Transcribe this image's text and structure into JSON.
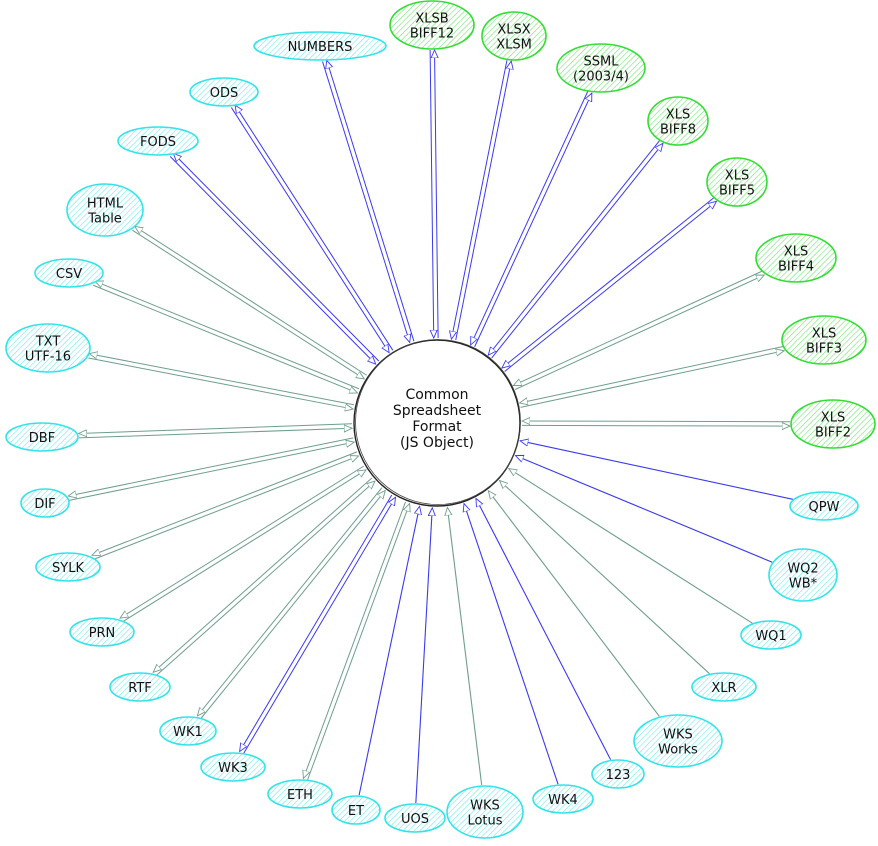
{
  "center": {
    "lines": [
      "Common",
      "Spreadsheet",
      "Format",
      "(JS Object)"
    ]
  },
  "colors": {
    "xls_family_stroke": "#33dd33",
    "xls_family_fill": "#b8f5b8",
    "other_stroke": "#33e3e8",
    "other_fill": "#b8f4f6",
    "edge_blue": "#3a3af0",
    "edge_green": "#6f9e8c"
  },
  "nodes": [
    {
      "id": "numbers",
      "lines": [
        "NUMBERS"
      ],
      "family": "other",
      "edge": "both",
      "edge_color": "blue"
    },
    {
      "id": "xlsb",
      "lines": [
        "XLSB",
        "BIFF12"
      ],
      "family": "xls",
      "edge": "both",
      "edge_color": "blue"
    },
    {
      "id": "xlsx",
      "lines": [
        "XLSX",
        "XLSM"
      ],
      "family": "xls",
      "edge": "both",
      "edge_color": "blue"
    },
    {
      "id": "ssml",
      "lines": [
        "SSML",
        "(2003/4)"
      ],
      "family": "xls",
      "edge": "both",
      "edge_color": "blue"
    },
    {
      "id": "biff8",
      "lines": [
        "XLS",
        "BIFF8"
      ],
      "family": "xls",
      "edge": "both",
      "edge_color": "blue"
    },
    {
      "id": "biff5",
      "lines": [
        "XLS",
        "BIFF5"
      ],
      "family": "xls",
      "edge": "both",
      "edge_color": "blue"
    },
    {
      "id": "biff4",
      "lines": [
        "XLS",
        "BIFF4"
      ],
      "family": "xls",
      "edge": "both",
      "edge_color": "green"
    },
    {
      "id": "biff3",
      "lines": [
        "XLS",
        "BIFF3"
      ],
      "family": "xls",
      "edge": "both",
      "edge_color": "green"
    },
    {
      "id": "biff2",
      "lines": [
        "XLS",
        "BIFF2"
      ],
      "family": "xls",
      "edge": "both",
      "edge_color": "green"
    },
    {
      "id": "qpw",
      "lines": [
        "QPW"
      ],
      "family": "other",
      "edge": "read",
      "edge_color": "blue"
    },
    {
      "id": "wq2",
      "lines": [
        "WQ2",
        "WB*"
      ],
      "family": "other",
      "edge": "read",
      "edge_color": "blue"
    },
    {
      "id": "wq1",
      "lines": [
        "WQ1"
      ],
      "family": "other",
      "edge": "read",
      "edge_color": "green"
    },
    {
      "id": "xlr",
      "lines": [
        "XLR"
      ],
      "family": "other",
      "edge": "read",
      "edge_color": "green"
    },
    {
      "id": "wks-works",
      "lines": [
        "WKS",
        "Works"
      ],
      "family": "other",
      "edge": "read",
      "edge_color": "green"
    },
    {
      "id": "123",
      "lines": [
        "123"
      ],
      "family": "other",
      "edge": "read",
      "edge_color": "blue"
    },
    {
      "id": "wk4",
      "lines": [
        "WK4"
      ],
      "family": "other",
      "edge": "read",
      "edge_color": "blue"
    },
    {
      "id": "wks-lotus",
      "lines": [
        "WKS",
        "Lotus"
      ],
      "family": "other",
      "edge": "read",
      "edge_color": "green"
    },
    {
      "id": "uos",
      "lines": [
        "UOS"
      ],
      "family": "other",
      "edge": "read",
      "edge_color": "blue"
    },
    {
      "id": "et",
      "lines": [
        "ET"
      ],
      "family": "other",
      "edge": "read",
      "edge_color": "blue"
    },
    {
      "id": "eth",
      "lines": [
        "ETH"
      ],
      "family": "other",
      "edge": "both",
      "edge_color": "green"
    },
    {
      "id": "wk3",
      "lines": [
        "WK3"
      ],
      "family": "other",
      "edge": "both",
      "edge_color": "blue"
    },
    {
      "id": "wk1",
      "lines": [
        "WK1"
      ],
      "family": "other",
      "edge": "both",
      "edge_color": "green"
    },
    {
      "id": "rtf",
      "lines": [
        "RTF"
      ],
      "family": "other",
      "edge": "both",
      "edge_color": "green"
    },
    {
      "id": "prn",
      "lines": [
        "PRN"
      ],
      "family": "other",
      "edge": "both",
      "edge_color": "green"
    },
    {
      "id": "sylk",
      "lines": [
        "SYLK"
      ],
      "family": "other",
      "edge": "both",
      "edge_color": "green"
    },
    {
      "id": "dif",
      "lines": [
        "DIF"
      ],
      "family": "other",
      "edge": "both",
      "edge_color": "green"
    },
    {
      "id": "dbf",
      "lines": [
        "DBF"
      ],
      "family": "other",
      "edge": "both",
      "edge_color": "green"
    },
    {
      "id": "txt",
      "lines": [
        "TXT",
        "UTF-16"
      ],
      "family": "other",
      "edge": "both",
      "edge_color": "green"
    },
    {
      "id": "csv",
      "lines": [
        "CSV"
      ],
      "family": "other",
      "edge": "both",
      "edge_color": "green"
    },
    {
      "id": "html",
      "lines": [
        "HTML",
        "Table"
      ],
      "family": "other",
      "edge": "both",
      "edge_color": "green"
    },
    {
      "id": "fods",
      "lines": [
        "FODS"
      ],
      "family": "other",
      "edge": "both",
      "edge_color": "blue"
    },
    {
      "id": "ods",
      "lines": [
        "ODS"
      ],
      "family": "other",
      "edge": "both",
      "edge_color": "blue"
    }
  ]
}
